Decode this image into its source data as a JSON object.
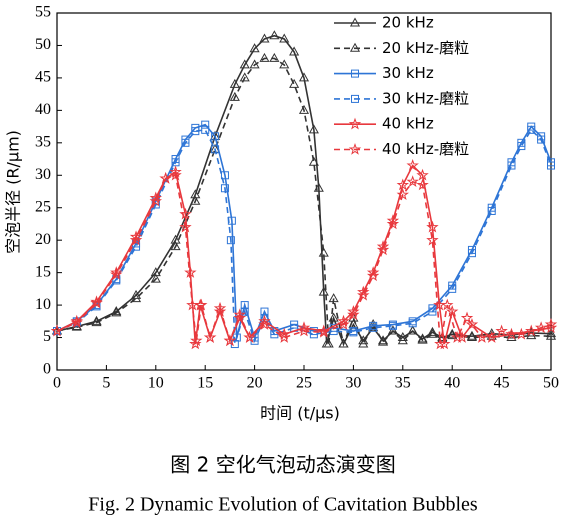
{
  "chart_data": {
    "type": "line",
    "x_label": "时间 (t/μs)",
    "y_label": "空泡半径 (R/μm)",
    "caption_cn": "图 2  空化气泡动态演变图",
    "caption_en": "Fig. 2 Dynamic Evolution of Cavitation Bubbles",
    "xlim": [
      0,
      50
    ],
    "ylim": [
      0,
      55
    ],
    "xticks": [
      0,
      5,
      10,
      15,
      20,
      25,
      30,
      35,
      40,
      45,
      50
    ],
    "yticks": [
      0,
      5,
      10,
      15,
      20,
      25,
      30,
      35,
      40,
      45,
      50,
      55
    ],
    "grid": false,
    "legend": "upper right",
    "series": [
      {
        "name": "20 kHz",
        "color": "#333333",
        "dash": false,
        "marker": "triangle",
        "x": [
          0,
          2,
          4,
          6,
          8,
          10,
          12,
          14,
          16,
          18,
          19,
          20,
          21,
          22,
          23,
          24,
          25,
          26,
          26.5,
          27,
          27.3,
          28,
          29,
          30,
          31,
          32,
          33,
          34,
          35,
          36,
          37,
          38,
          39,
          40,
          42,
          44,
          46,
          48,
          50
        ],
        "values": [
          6,
          6.7,
          7.5,
          9,
          11.5,
          15,
          20,
          27,
          36,
          44,
          47,
          49.5,
          51,
          51.5,
          51,
          49,
          45,
          37,
          28,
          12,
          4,
          8,
          4,
          7,
          4.5,
          6.5,
          4.5,
          6,
          5,
          6,
          4.8,
          5.8,
          5,
          5.5,
          5.2,
          5.6,
          5.4,
          5.7,
          5.6
        ]
      },
      {
        "name": "20 kHz-磨粒",
        "color": "#333333",
        "dash": true,
        "marker": "triangle",
        "x": [
          0,
          2,
          4,
          6,
          8,
          10,
          12,
          14,
          16,
          18,
          19,
          20,
          21,
          22,
          23,
          24,
          25,
          26,
          27,
          27.5,
          28,
          29,
          30,
          31,
          32,
          33,
          34,
          35,
          36,
          37,
          38,
          39,
          40,
          42,
          44,
          46,
          48,
          50
        ],
        "values": [
          6,
          6.6,
          7.3,
          8.8,
          11,
          14,
          19,
          26,
          34,
          42,
          45,
          47,
          48,
          48,
          47,
          44,
          40,
          32,
          18,
          4,
          11,
          4,
          8,
          4,
          7,
          4.3,
          6,
          4.5,
          6,
          4.6,
          5.5,
          4.8,
          5.3,
          5,
          5.2,
          5,
          5.3,
          5.2
        ]
      },
      {
        "name": "30 kHz",
        "color": "#2e75d6",
        "dash": false,
        "marker": "square",
        "x": [
          0,
          2,
          4,
          6,
          8,
          10,
          12,
          13,
          14,
          15,
          16,
          17,
          17.7,
          18.2,
          19,
          20,
          21,
          22,
          24,
          26,
          28,
          30,
          32,
          34,
          36,
          38,
          40,
          42,
          44,
          46,
          47,
          48,
          49,
          50
        ],
        "values": [
          6,
          7.5,
          10,
          14,
          19.5,
          26,
          32.5,
          35.5,
          37.3,
          37.8,
          36,
          30,
          23,
          5,
          10,
          5,
          9,
          6,
          7,
          6,
          6.5,
          6,
          6.8,
          7,
          7.5,
          9.5,
          13,
          18.5,
          25,
          32,
          35,
          37.5,
          36,
          32
        ]
      },
      {
        "name": "30 kHz-磨粒",
        "color": "#2e75d6",
        "dash": true,
        "marker": "square",
        "x": [
          0,
          2,
          4,
          6,
          8,
          10,
          12,
          13,
          14,
          15,
          16,
          17,
          17.6,
          18,
          19,
          20,
          21,
          22,
          24,
          26,
          28,
          30,
          32,
          34,
          36,
          38,
          40,
          42,
          44,
          46,
          47,
          48,
          49,
          50
        ],
        "values": [
          6,
          7.3,
          9.8,
          13.8,
          19,
          25.5,
          32,
          35,
          36.8,
          37,
          34,
          28,
          20,
          4,
          9,
          4.5,
          8,
          5.5,
          6.5,
          5.5,
          6,
          5.8,
          6.5,
          6.8,
          7.2,
          9,
          12.5,
          18,
          24.5,
          31.5,
          34.5,
          37,
          35.5,
          31.5
        ]
      },
      {
        "name": "40 kHz",
        "color": "#e8383d",
        "dash": false,
        "marker": "star",
        "x": [
          0,
          2,
          4,
          6,
          8,
          10,
          11,
          12,
          13,
          13.5,
          14,
          14.5,
          15.5,
          16.5,
          17.5,
          18.5,
          19.5,
          21,
          23,
          25,
          27,
          29,
          30,
          31,
          32,
          33,
          34,
          35,
          36,
          37,
          38,
          38.7,
          39.2,
          40,
          41,
          42,
          44,
          46,
          48,
          50
        ],
        "values": [
          6,
          7.5,
          10.5,
          15,
          20.5,
          26.5,
          29.5,
          30.5,
          24,
          15,
          4,
          10,
          5,
          9,
          4.5,
          8,
          5,
          7.5,
          5.5,
          6.5,
          6,
          7.5,
          9,
          12,
          15,
          19,
          23,
          28.5,
          31.5,
          30,
          22,
          10,
          4,
          9,
          5,
          7,
          5,
          5.5,
          6,
          6.5
        ]
      },
      {
        "name": "40 kHz-磨粒",
        "color": "#e8383d",
        "dash": true,
        "marker": "star",
        "x": [
          0,
          2,
          4,
          6,
          8,
          10,
          11,
          12,
          13,
          13.7,
          14.1,
          14.6,
          15.5,
          16.5,
          17.5,
          18.5,
          19.5,
          21,
          23,
          25,
          27,
          29,
          30,
          31,
          32,
          33,
          34,
          35,
          36,
          37,
          38,
          38.8,
          39.5,
          40.5,
          41.5,
          43,
          45,
          47,
          49,
          50
        ],
        "values": [
          6,
          7.3,
          10.3,
          14.7,
          20,
          26,
          29.5,
          30,
          22,
          10,
          4.5,
          10,
          5,
          9.5,
          4.5,
          8.5,
          5,
          7,
          5,
          6,
          5.8,
          7,
          8.5,
          11.5,
          14.5,
          18.5,
          22.5,
          27,
          29,
          28.5,
          20,
          4,
          10,
          5,
          8,
          5,
          6,
          5.5,
          6.5,
          7
        ]
      }
    ]
  }
}
